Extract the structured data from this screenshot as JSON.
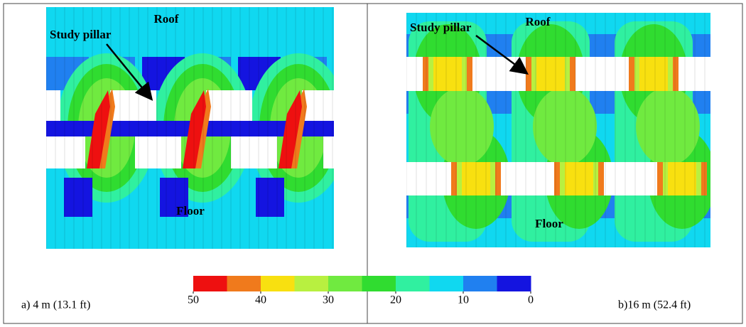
{
  "panels": [
    {
      "roof": "Roof",
      "floor": "Floor",
      "annotation": "Study pillar",
      "caption": "a) 4 m (13.1 ft)"
    },
    {
      "roof": "Roof",
      "floor": "Floor",
      "annotation": "Study pillar",
      "caption": "b)16 m (52.4 ft)"
    }
  ],
  "colorbar": {
    "colors": [
      "#ee1010",
      "#f07a1c",
      "#f8e010",
      "#b8f040",
      "#70ea40",
      "#30dc30",
      "#30f0a0",
      "#10d8f0",
      "#2080f0",
      "#1414e0"
    ],
    "ticks": [
      50,
      40,
      30,
      20,
      10,
      0
    ]
  }
}
